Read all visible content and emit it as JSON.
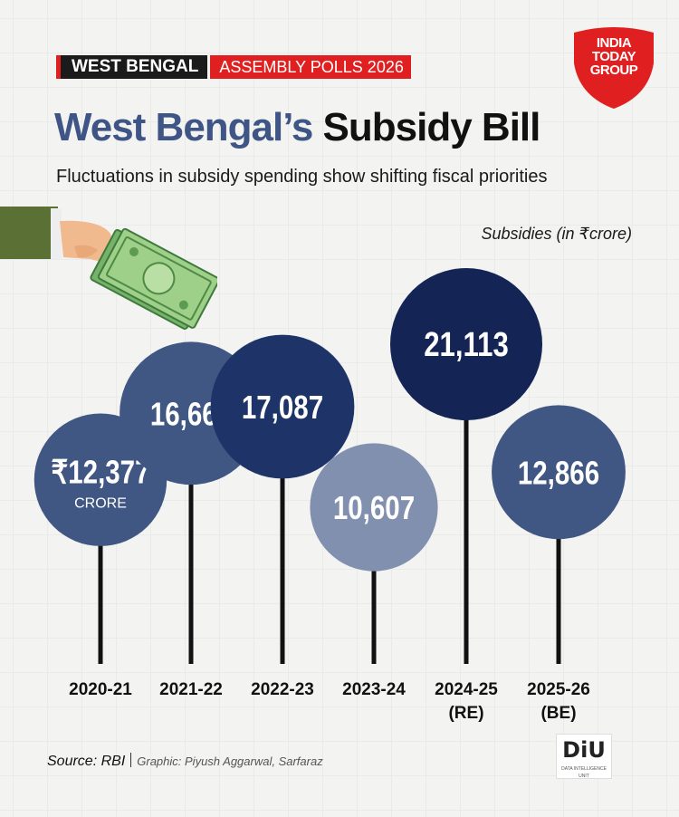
{
  "header": {
    "tag_left": "WEST BENGAL",
    "tag_right": "ASSEMBLY POLLS 2026",
    "logo_lines": [
      "INDIA",
      "TODAY",
      "GROUP"
    ],
    "title_part1": "West Bengal’s",
    "title_part2": "Subsidy Bill",
    "subtitle": "Fluctuations in subsidy spending show shifting fiscal priorities",
    "unit_label": "Subsidies (in ₹crore)"
  },
  "colors": {
    "accent_red": "#e02020",
    "title_blue": "#3e5585",
    "bubble_darkest": "#132455",
    "bubble_dark": "#1e3468",
    "bubble_mid": "#405683",
    "bubble_light": "#8290b0",
    "stick": "#111111"
  },
  "chart_data": {
    "type": "bubble-lollipop",
    "categories": [
      "2020-21",
      "2021-22",
      "2022-23",
      "2023-24",
      "2024-25\n(RE)",
      "2025-26\n(BE)"
    ],
    "values": [
      12377,
      16660,
      17087,
      10607,
      21113,
      12866
    ],
    "value_labels": [
      "₹12,377",
      "16,660",
      "17,087",
      "10,607",
      "21,113",
      "12,866"
    ],
    "first_label_suffix": "CRORE",
    "series": [
      {
        "values": [
          12377,
          16660,
          17087,
          10607,
          21113,
          12866
        ]
      }
    ]
  },
  "footer": {
    "source": "Source: RBI",
    "credit": "Graphic: Piyush Aggarwal, Sarfaraz",
    "badge": "DiU",
    "badge_sub": "DATA INTELLIGENCE UNIT"
  }
}
